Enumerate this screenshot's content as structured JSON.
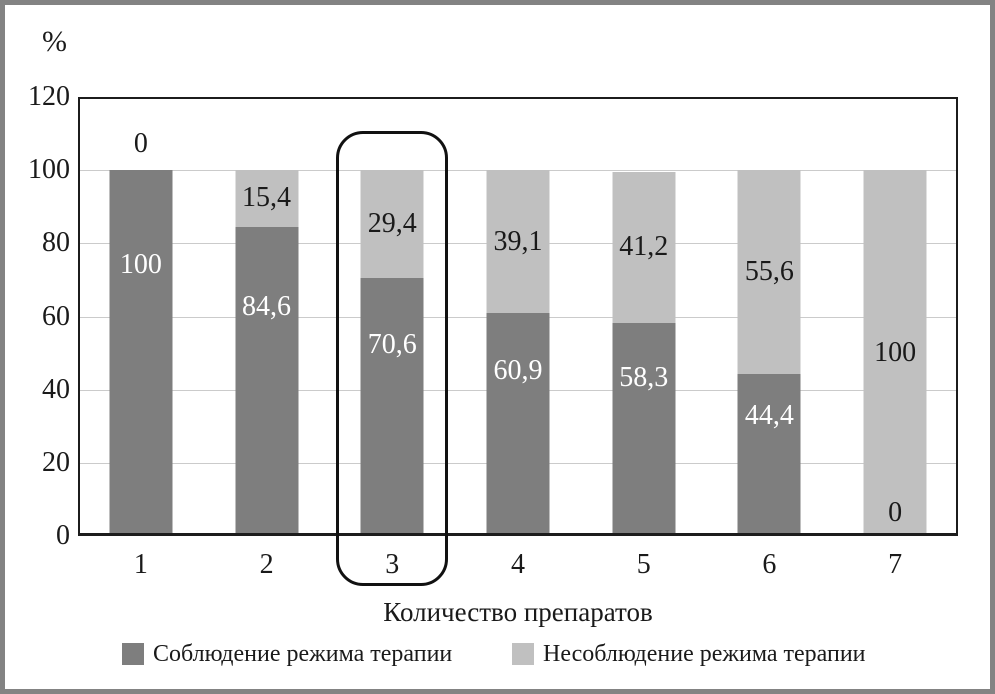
{
  "frame": {
    "border_color": "#838383"
  },
  "chart_data": {
    "type": "bar",
    "stacked": true,
    "title": "",
    "xlabel": "Количество препаратов",
    "ylabel": "%",
    "ylim": [
      0,
      120
    ],
    "yticks": [
      0,
      20,
      40,
      60,
      80,
      100,
      120
    ],
    "grid": true,
    "legend_position": "bottom",
    "categories": [
      "1",
      "2",
      "3",
      "4",
      "5",
      "6",
      "7"
    ],
    "series": [
      {
        "name": "Соблюдение режима терапии",
        "color": "#7e7e7e",
        "label_color": "#ffffff",
        "values": [
          100,
          84.6,
          70.6,
          60.9,
          58.3,
          44.4,
          0
        ],
        "labels": [
          "100",
          "84,6",
          "70,6",
          "60,9",
          "58,3",
          "44,4",
          "0"
        ]
      },
      {
        "name": "Несоблюдение режима терапии",
        "color": "#c0c0c0",
        "label_color": "#1a1a1a",
        "values": [
          0,
          15.4,
          29.4,
          39.1,
          41.2,
          55.6,
          100
        ],
        "labels": [
          "0",
          "15,4",
          "29,4",
          "39,1",
          "41,2",
          "55,6",
          "100"
        ]
      }
    ],
    "highlighted_category": "3",
    "zero_label_color": "#1a1a1a"
  }
}
